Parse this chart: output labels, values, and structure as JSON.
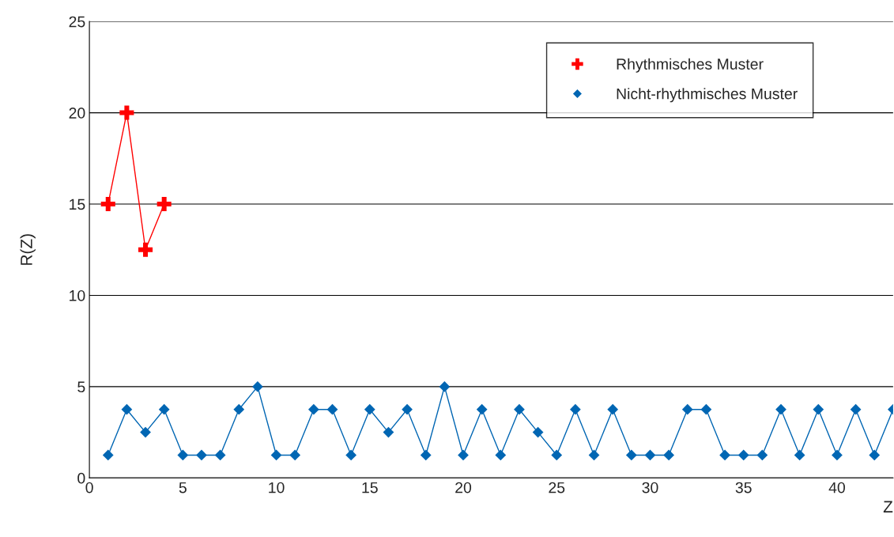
{
  "chart_data": {
    "type": "line",
    "xlabel": "Z",
    "ylabel": "R(Z)",
    "xlim": [
      0,
      43
    ],
    "xticks": [
      0,
      5,
      10,
      15,
      20,
      25,
      30,
      35,
      40
    ],
    "ylim": [
      0,
      25
    ],
    "yticks": [
      0,
      5,
      10,
      15,
      20,
      25
    ],
    "grid": "y",
    "legend": "top right",
    "series": [
      {
        "name": "Rhythmisches Muster",
        "color": "#ff0000",
        "marker": "cross",
        "x": [
          1,
          2,
          3,
          4
        ],
        "values": [
          15,
          20,
          12.5,
          15
        ]
      },
      {
        "name": "Nicht-rhythmisches Muster",
        "color": "#0066b3",
        "marker": "diamond",
        "x": [
          1,
          2,
          3,
          4,
          5,
          6,
          7,
          8,
          9,
          10,
          11,
          12,
          13,
          14,
          15,
          16,
          17,
          18,
          19,
          20,
          21,
          22,
          23,
          24,
          25,
          26,
          27,
          28,
          29,
          30,
          31,
          32,
          33,
          34,
          35,
          36,
          37,
          38,
          39,
          40,
          41,
          42,
          43
        ],
        "values": [
          1.25,
          3.75,
          2.5,
          3.75,
          1.25,
          1.25,
          1.25,
          3.75,
          5,
          1.25,
          1.25,
          3.75,
          3.75,
          1.25,
          3.75,
          2.5,
          3.75,
          1.25,
          5,
          1.25,
          3.75,
          1.25,
          3.75,
          2.5,
          1.25,
          3.75,
          1.25,
          3.75,
          1.25,
          1.25,
          1.25,
          3.75,
          3.75,
          1.25,
          1.25,
          1.25,
          3.75,
          1.25,
          3.75,
          1.25,
          3.75,
          1.25,
          3.75
        ]
      }
    ]
  }
}
